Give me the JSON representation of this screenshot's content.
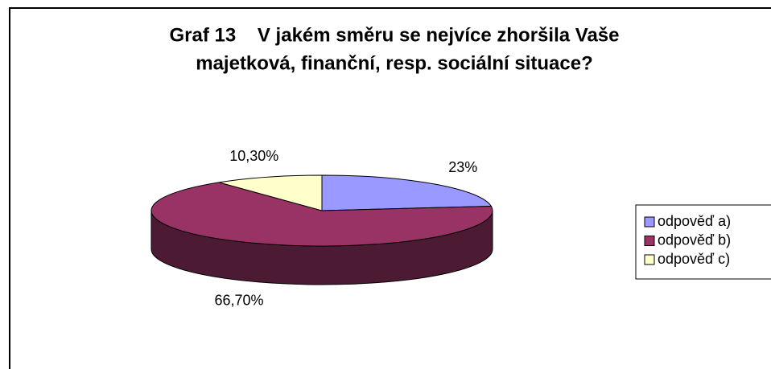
{
  "chart_data": {
    "type": "pie",
    "title": [
      "Graf 13    V jakém směru se nejvíce zhoršila Vaše",
      "majetková, finanční, resp. sociální situace?"
    ],
    "categories": [
      "odpověď a)",
      "odpověď b)",
      "odpověď c)"
    ],
    "values": [
      23,
      66.7,
      10.3
    ],
    "value_labels": [
      "23%",
      "66,70%",
      "10,30%"
    ],
    "colors": [
      "#9999ff",
      "#993366",
      "#ffffcc"
    ],
    "legend": "right"
  }
}
